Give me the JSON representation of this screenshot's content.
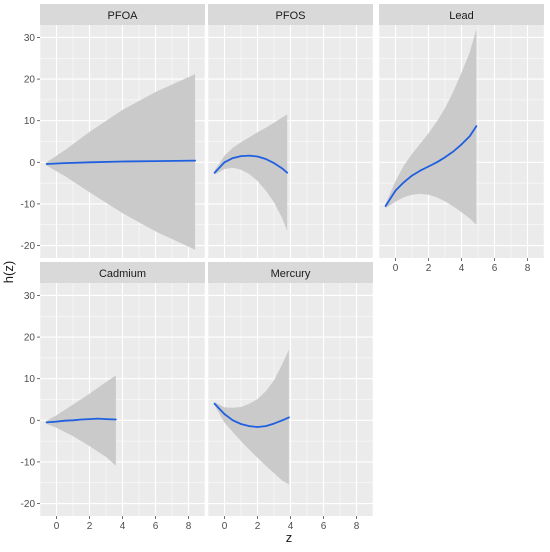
{
  "chart_data": {
    "type": "line",
    "xlabel": "z",
    "ylabel": "h(z)",
    "xlim": [
      -1,
      9
    ],
    "ylim": [
      -23,
      33
    ],
    "x_ticks": [
      0,
      2,
      4,
      6,
      8
    ],
    "y_ticks": [
      -20,
      -10,
      0,
      10,
      20,
      30
    ],
    "grid": true,
    "colors": {
      "line": "#1f5fe0",
      "band": "#c8c8c8",
      "panel_bg": "#ebebeb",
      "strip_bg": "#d9d9d9",
      "grid": "#ffffff"
    },
    "panels": [
      {
        "name": "PFOA",
        "x": [
          -0.6,
          0.5,
          2,
          4,
          6,
          8.4
        ],
        "estimate": [
          -0.4,
          -0.2,
          0,
          0.2,
          0.3,
          0.4
        ],
        "lower": [
          -0.8,
          -3.3,
          -7.2,
          -12.2,
          -16.6,
          -21
        ],
        "upper": [
          0,
          2.9,
          7.3,
          12.6,
          16.9,
          21.2
        ]
      },
      {
        "name": "PFOS",
        "x": [
          -0.6,
          0,
          0.5,
          1,
          1.5,
          2,
          2.5,
          3,
          3.5,
          3.8
        ],
        "estimate": [
          -2.5,
          0,
          1,
          1.5,
          1.6,
          1.4,
          0.8,
          -0.2,
          -1.5,
          -2.5
        ],
        "lower": [
          -3,
          -1.6,
          -1.3,
          -1.8,
          -2.8,
          -4.5,
          -6.8,
          -9.6,
          -13.5,
          -16.5
        ],
        "upper": [
          -2,
          1.6,
          3.5,
          4.8,
          6,
          7.2,
          8.3,
          9.5,
          10.8,
          11.5
        ]
      },
      {
        "name": "Lead",
        "x": [
          -0.6,
          0,
          0.5,
          1,
          1.5,
          2,
          2.5,
          3,
          3.5,
          4,
          4.5,
          4.9
        ],
        "estimate": [
          -10.5,
          -6.8,
          -4.8,
          -3.2,
          -2,
          -1,
          0,
          1.2,
          2.6,
          4.3,
          6.3,
          8.7
        ],
        "lower": [
          -11,
          -9.5,
          -8.4,
          -7.8,
          -7.6,
          -7.8,
          -8.4,
          -9.4,
          -10.6,
          -12,
          -13.5,
          -15
        ],
        "upper": [
          -10,
          -4.5,
          -0.8,
          2,
          4.5,
          7,
          9.8,
          13,
          17,
          21.5,
          26.5,
          32
        ]
      },
      {
        "name": "Cadmium",
        "x": [
          -0.6,
          0,
          0.5,
          1,
          1.5,
          2,
          2.5,
          3,
          3.6
        ],
        "estimate": [
          -0.5,
          -0.3,
          -0.1,
          0,
          0.2,
          0.3,
          0.4,
          0.3,
          0.2
        ],
        "lower": [
          -0.9,
          -1.8,
          -2.8,
          -3.8,
          -5,
          -6.2,
          -7.5,
          -8.8,
          -10.9
        ],
        "upper": [
          -0.1,
          1.2,
          2.5,
          3.8,
          5.1,
          6.4,
          7.8,
          9.2,
          10.8
        ]
      },
      {
        "name": "Mercury",
        "x": [
          -0.6,
          0,
          0.5,
          1,
          1.5,
          2,
          2.5,
          3,
          3.5,
          3.9
        ],
        "estimate": [
          4,
          1.5,
          0,
          -0.9,
          -1.4,
          -1.6,
          -1.4,
          -0.8,
          0,
          0.7
        ],
        "lower": [
          3.6,
          -0.6,
          -2.8,
          -5,
          -7.1,
          -9,
          -10.9,
          -12.7,
          -14.5,
          -15.4
        ],
        "upper": [
          4.4,
          3.1,
          3,
          3.2,
          4,
          5.1,
          7,
          9.6,
          13.5,
          17
        ]
      }
    ]
  }
}
